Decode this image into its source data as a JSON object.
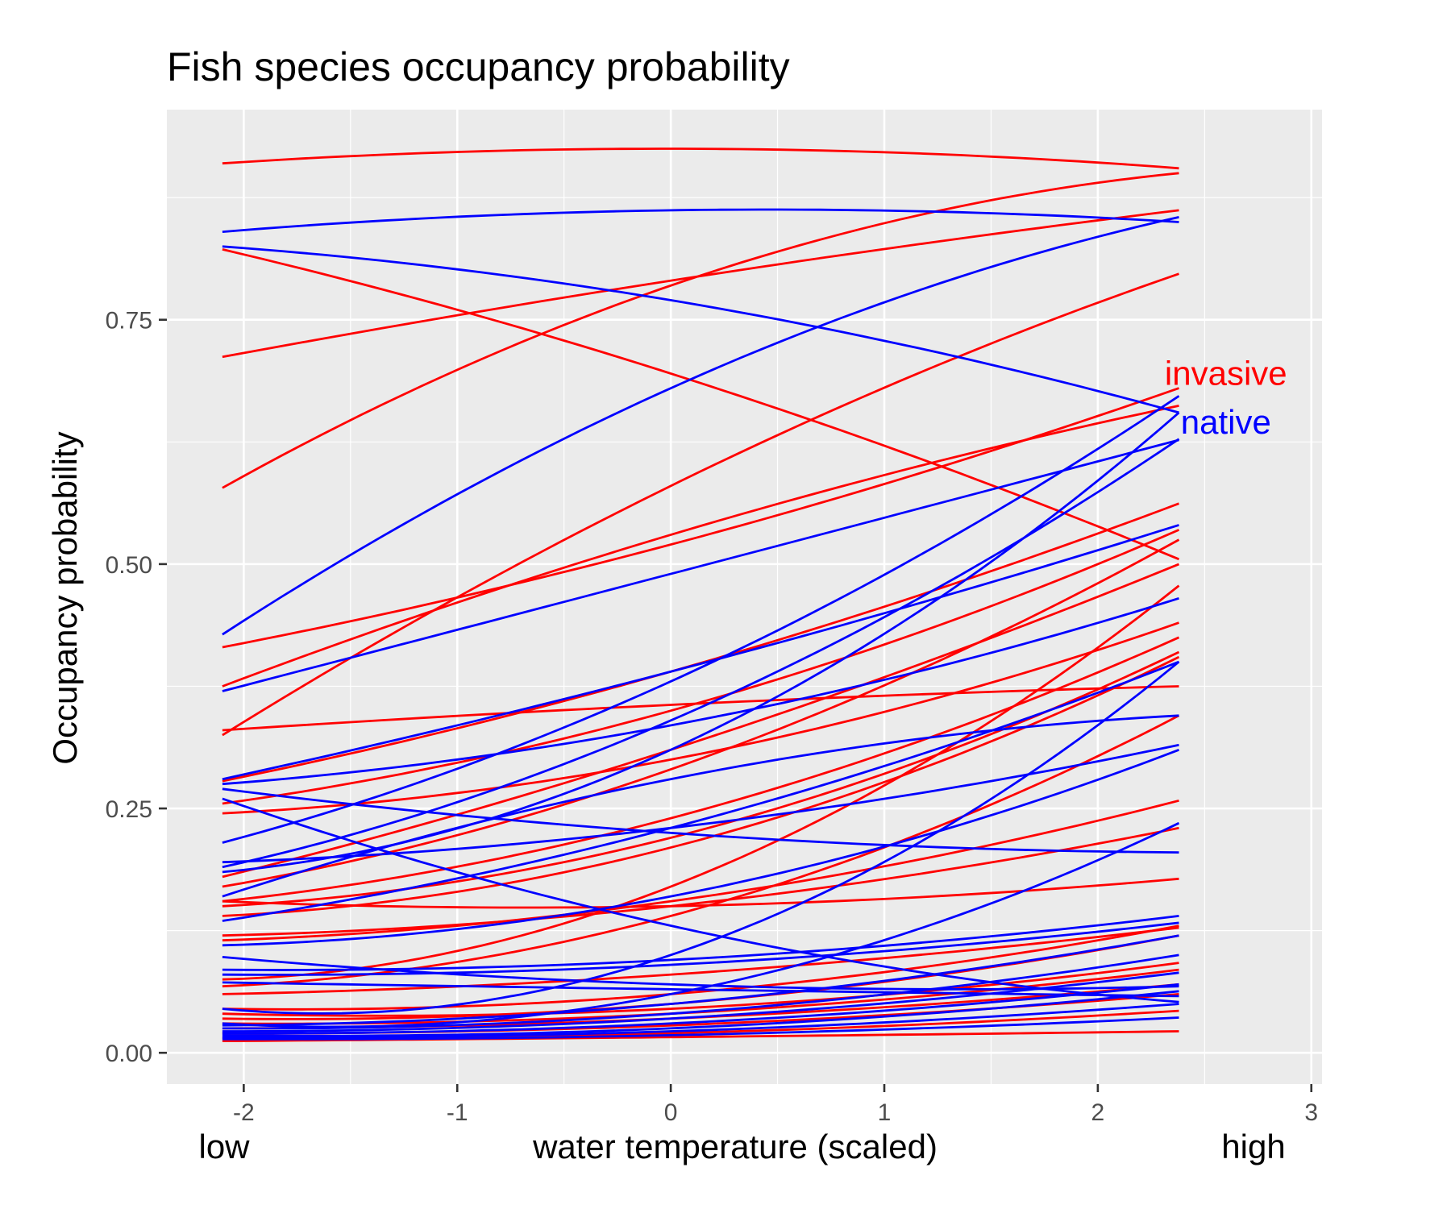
{
  "chart_data": {
    "type": "line",
    "title": "Fish species occupancy probability",
    "xlabel": "water temperature (scaled)",
    "ylabel": "Occupancy probability",
    "x_low_label": "low",
    "x_high_label": "high",
    "xlim": [
      -2.36,
      3.05
    ],
    "ylim": [
      -0.032,
      0.965
    ],
    "x_ticks": [
      -2,
      -1,
      0,
      1,
      2,
      3
    ],
    "x_tick_labels": [
      "-2",
      "-1",
      "0",
      "1",
      "2",
      "3"
    ],
    "y_ticks": [
      0,
      0.25,
      0.5,
      0.75
    ],
    "y_tick_labels": [
      "0.00",
      "0.25",
      "0.50",
      "0.75"
    ],
    "grid": true,
    "background": "#ebebeb",
    "x_range": [
      -2.1,
      2.38
    ],
    "annotations": [
      {
        "text": "invasive",
        "x": 2.6,
        "y": 0.695,
        "color": "#ff0000"
      },
      {
        "text": "native",
        "x": 2.6,
        "y": 0.645,
        "color": "#0000ff"
      }
    ],
    "groups": [
      {
        "name": "invasive",
        "color": "#ff0000"
      },
      {
        "name": "native",
        "color": "#0000ff"
      }
    ],
    "series": [
      {
        "group": "invasive",
        "y_start": 0.91,
        "y_mid": 0.925,
        "y_end": 0.905
      },
      {
        "group": "invasive",
        "y_start": 0.822,
        "y_mid": 0.695,
        "y_end": 0.505
      },
      {
        "group": "invasive",
        "y_start": 0.712,
        "y_mid": 0.79,
        "y_end": 0.862
      },
      {
        "group": "invasive",
        "y_start": 0.578,
        "y_mid": 0.785,
        "y_end": 0.9
      },
      {
        "group": "invasive",
        "y_start": 0.415,
        "y_mid": 0.52,
        "y_end": 0.68
      },
      {
        "group": "invasive",
        "y_start": 0.325,
        "y_mid": 0.58,
        "y_end": 0.797
      },
      {
        "group": "invasive",
        "y_start": 0.375,
        "y_mid": 0.53,
        "y_end": 0.662
      },
      {
        "group": "invasive",
        "y_start": 0.33,
        "y_mid": 0.356,
        "y_end": 0.375
      },
      {
        "group": "invasive",
        "y_start": 0.278,
        "y_mid": 0.39,
        "y_end": 0.562
      },
      {
        "group": "invasive",
        "y_start": 0.255,
        "y_mid": 0.35,
        "y_end": 0.535
      },
      {
        "group": "invasive",
        "y_start": 0.245,
        "y_mid": 0.3,
        "y_end": 0.44
      },
      {
        "group": "invasive",
        "y_start": 0.18,
        "y_mid": 0.31,
        "y_end": 0.5
      },
      {
        "group": "invasive",
        "y_start": 0.17,
        "y_mid": 0.29,
        "y_end": 0.525
      },
      {
        "group": "invasive",
        "y_start": 0.155,
        "y_mid": 0.24,
        "y_end": 0.425
      },
      {
        "group": "invasive",
        "y_start": 0.15,
        "y_mid": 0.22,
        "y_end": 0.41
      },
      {
        "group": "invasive",
        "y_start": 0.14,
        "y_mid": 0.21,
        "y_end": 0.405
      },
      {
        "group": "invasive",
        "y_start": 0.155,
        "y_mid": 0.15,
        "y_end": 0.178
      },
      {
        "group": "invasive",
        "y_start": 0.12,
        "y_mid": 0.15,
        "y_end": 0.23
      },
      {
        "group": "invasive",
        "y_start": 0.115,
        "y_mid": 0.155,
        "y_end": 0.258
      },
      {
        "group": "invasive",
        "y_start": 0.075,
        "y_mid": 0.17,
        "y_end": 0.478
      },
      {
        "group": "invasive",
        "y_start": 0.068,
        "y_mid": 0.14,
        "y_end": 0.345
      },
      {
        "group": "invasive",
        "y_start": 0.06,
        "y_mid": 0.08,
        "y_end": 0.128
      },
      {
        "group": "invasive",
        "y_start": 0.045,
        "y_mid": 0.06,
        "y_end": 0.13
      },
      {
        "group": "invasive",
        "y_start": 0.035,
        "y_mid": 0.05,
        "y_end": 0.12
      },
      {
        "group": "invasive",
        "y_start": 0.04,
        "y_mid": 0.045,
        "y_end": 0.092
      },
      {
        "group": "invasive",
        "y_start": 0.03,
        "y_mid": 0.04,
        "y_end": 0.085
      },
      {
        "group": "invasive",
        "y_start": 0.025,
        "y_mid": 0.035,
        "y_end": 0.07
      },
      {
        "group": "invasive",
        "y_start": 0.02,
        "y_mid": 0.028,
        "y_end": 0.06
      },
      {
        "group": "invasive",
        "y_start": 0.015,
        "y_mid": 0.02,
        "y_end": 0.043
      },
      {
        "group": "invasive",
        "y_start": 0.012,
        "y_mid": 0.016,
        "y_end": 0.022
      },
      {
        "group": "native",
        "y_start": 0.84,
        "y_mid": 0.862,
        "y_end": 0.85
      },
      {
        "group": "native",
        "y_start": 0.825,
        "y_mid": 0.77,
        "y_end": 0.655
      },
      {
        "group": "native",
        "y_start": 0.428,
        "y_mid": 0.68,
        "y_end": 0.855
      },
      {
        "group": "native",
        "y_start": 0.37,
        "y_mid": 0.49,
        "y_end": 0.627
      },
      {
        "group": "native",
        "y_start": 0.28,
        "y_mid": 0.39,
        "y_end": 0.54
      },
      {
        "group": "native",
        "y_start": 0.275,
        "y_mid": 0.335,
        "y_end": 0.465
      },
      {
        "group": "native",
        "y_start": 0.27,
        "y_mid": 0.225,
        "y_end": 0.205
      },
      {
        "group": "native",
        "y_start": 0.26,
        "y_mid": 0.13,
        "y_end": 0.052
      },
      {
        "group": "native",
        "y_start": 0.215,
        "y_mid": 0.38,
        "y_end": 0.672
      },
      {
        "group": "native",
        "y_start": 0.19,
        "y_mid": 0.34,
        "y_end": 0.628
      },
      {
        "group": "native",
        "y_start": 0.195,
        "y_mid": 0.23,
        "y_end": 0.315
      },
      {
        "group": "native",
        "y_start": 0.185,
        "y_mid": 0.31,
        "y_end": 0.655
      },
      {
        "group": "native",
        "y_start": 0.16,
        "y_mid": 0.28,
        "y_end": 0.345
      },
      {
        "group": "native",
        "y_start": 0.135,
        "y_mid": 0.23,
        "y_end": 0.4
      },
      {
        "group": "native",
        "y_start": 0.11,
        "y_mid": 0.16,
        "y_end": 0.31
      },
      {
        "group": "native",
        "y_start": 0.098,
        "y_mid": 0.07,
        "y_end": 0.068
      },
      {
        "group": "native",
        "y_start": 0.085,
        "y_mid": 0.095,
        "y_end": 0.14
      },
      {
        "group": "native",
        "y_start": 0.08,
        "y_mid": 0.09,
        "y_end": 0.133
      },
      {
        "group": "native",
        "y_start": 0.072,
        "y_mid": 0.065,
        "y_end": 0.058
      },
      {
        "group": "native",
        "y_start": 0.045,
        "y_mid": 0.1,
        "y_end": 0.4
      },
      {
        "group": "native",
        "y_start": 0.03,
        "y_mid": 0.06,
        "y_end": 0.235
      },
      {
        "group": "native",
        "y_start": 0.028,
        "y_mid": 0.05,
        "y_end": 0.12
      },
      {
        "group": "native",
        "y_start": 0.025,
        "y_mid": 0.04,
        "y_end": 0.1
      },
      {
        "group": "native",
        "y_start": 0.022,
        "y_mid": 0.035,
        "y_end": 0.082
      },
      {
        "group": "native",
        "y_start": 0.02,
        "y_mid": 0.03,
        "y_end": 0.07
      },
      {
        "group": "native",
        "y_start": 0.018,
        "y_mid": 0.025,
        "y_end": 0.063
      },
      {
        "group": "native",
        "y_start": 0.016,
        "y_mid": 0.022,
        "y_end": 0.05
      },
      {
        "group": "native",
        "y_start": 0.014,
        "y_mid": 0.018,
        "y_end": 0.036
      }
    ]
  }
}
